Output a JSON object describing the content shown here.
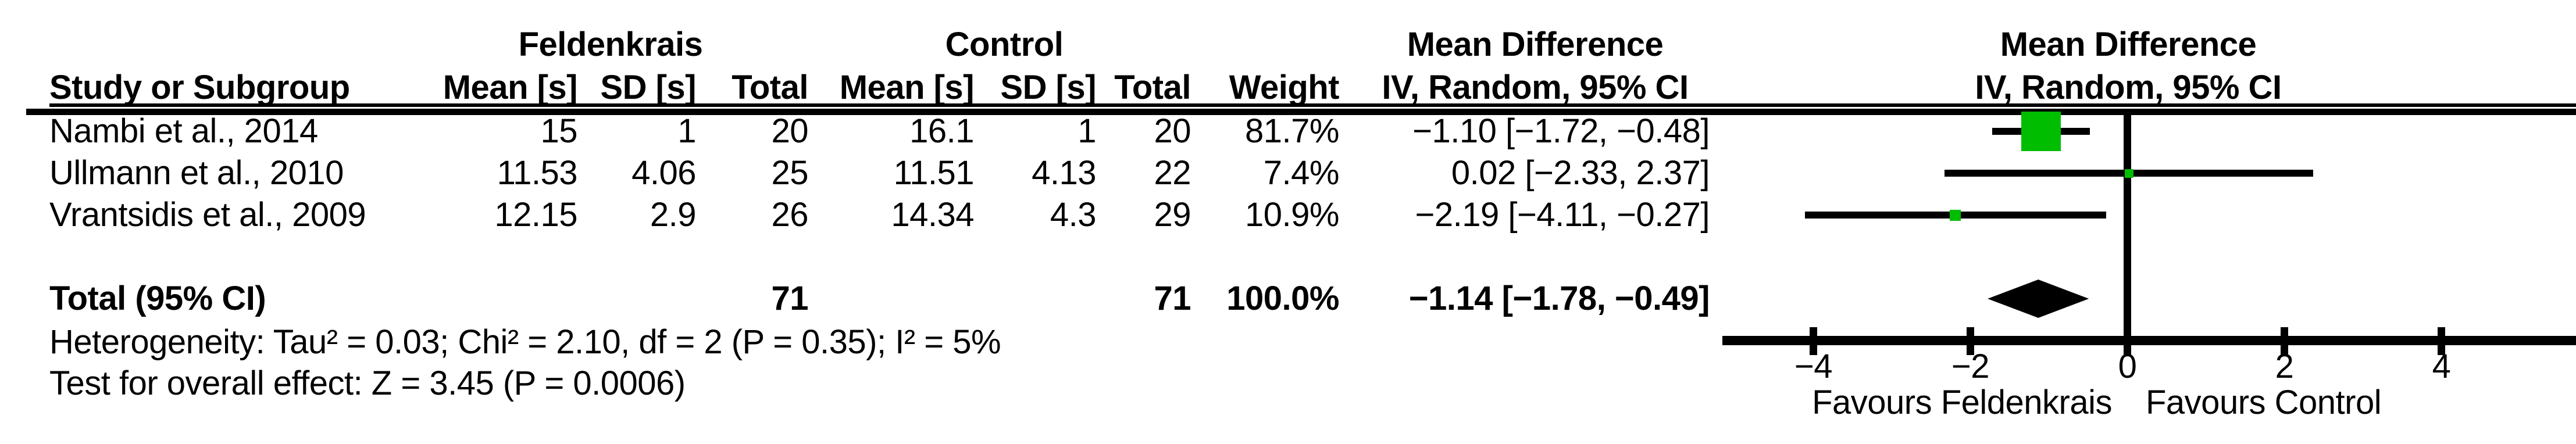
{
  "header": {
    "group1": "Feldenkrais",
    "group2": "Control",
    "md_stat_line1": "Mean Difference",
    "md_stat_line2": "IV, Random, 95% CI",
    "md_plot_line1": "Mean Difference",
    "md_plot_line2": "IV, Random, 95% CI",
    "study_col": "Study or Subgroup",
    "mean_col": "Mean [s]",
    "sd_col": "SD [s]",
    "total_col": "Total",
    "weight_col": "Weight"
  },
  "studies": [
    {
      "name": "Nambi et al., 2014",
      "f_mean": "15",
      "f_sd": "1",
      "f_total": "20",
      "c_mean": "16.1",
      "c_sd": "1",
      "c_total": "20",
      "weight": "81.7%",
      "ci_text": "−1.10 [−1.72, −0.48]"
    },
    {
      "name": "Ullmann et al., 2010",
      "f_mean": "11.53",
      "f_sd": "4.06",
      "f_total": "25",
      "c_mean": "11.51",
      "c_sd": "4.13",
      "c_total": "22",
      "weight": "7.4%",
      "ci_text": "0.02 [−2.33, 2.37]"
    },
    {
      "name": "Vrantsidis et al., 2009",
      "f_mean": "12.15",
      "f_sd": "2.9",
      "f_total": "26",
      "c_mean": "14.34",
      "c_sd": "4.3",
      "c_total": "29",
      "weight": "10.9%",
      "ci_text": "−2.19 [−4.11, −0.27]"
    }
  ],
  "total_row": {
    "label": "Total (95% CI)",
    "f_total": "71",
    "c_total": "71",
    "weight": "100.0%",
    "ci_text": "−1.14 [−1.78, −0.49]"
  },
  "footer": {
    "heterogeneity": "Heterogeneity: Tau² = 0.03; Chi² = 2.10, df = 2 (P = 0.35); I² = 5%",
    "overall_effect": "Test for overall effect: Z = 3.45 (P = 0.0006)"
  },
  "axis": {
    "tick_labels": [
      "−4",
      "−2",
      "0",
      "2",
      "4"
    ],
    "favours_left": "Favours Feldenkrais",
    "favours_right": "Favours Control"
  },
  "colors": {
    "effect_square": "#00BD00",
    "ink": "#000000"
  },
  "chart_data": {
    "type": "forest",
    "effect_measure": "Mean Difference",
    "model": "IV, Random, 95% CI",
    "units": "s",
    "x_axis": {
      "ticks": [
        -4,
        -2,
        0,
        2,
        4
      ],
      "shown_range": [
        -5.2,
        5.7
      ],
      "label_left": "Favours Feldenkrais",
      "label_right": "Favours Control"
    },
    "studies": [
      {
        "name": "Nambi et al., 2014",
        "md": -1.1,
        "ci_low": -1.72,
        "ci_high": -0.48,
        "weight_pct": 81.7,
        "exp_mean": 15,
        "exp_sd": 1,
        "exp_n": 20,
        "ctrl_mean": 16.1,
        "ctrl_sd": 1,
        "ctrl_n": 20
      },
      {
        "name": "Ullmann et al., 2010",
        "md": 0.02,
        "ci_low": -2.33,
        "ci_high": 2.37,
        "weight_pct": 7.4,
        "exp_mean": 11.53,
        "exp_sd": 4.06,
        "exp_n": 25,
        "ctrl_mean": 11.51,
        "ctrl_sd": 4.13,
        "ctrl_n": 22
      },
      {
        "name": "Vrantsidis et al., 2009",
        "md": -2.19,
        "ci_low": -4.11,
        "ci_high": -0.27,
        "weight_pct": 10.9,
        "exp_mean": 12.15,
        "exp_sd": 2.9,
        "exp_n": 26,
        "ctrl_mean": 14.34,
        "ctrl_sd": 4.3,
        "ctrl_n": 29
      }
    ],
    "total": {
      "name": "Total (95% CI)",
      "md": -1.14,
      "ci_low": -1.78,
      "ci_high": -0.49,
      "weight_pct": 100.0,
      "exp_n": 71,
      "ctrl_n": 71
    },
    "heterogeneity": {
      "tau2": 0.03,
      "chi2": 2.1,
      "df": 2,
      "p": 0.35,
      "i2_pct": 5
    },
    "overall_effect": {
      "z": 3.45,
      "p": 0.0006
    }
  }
}
